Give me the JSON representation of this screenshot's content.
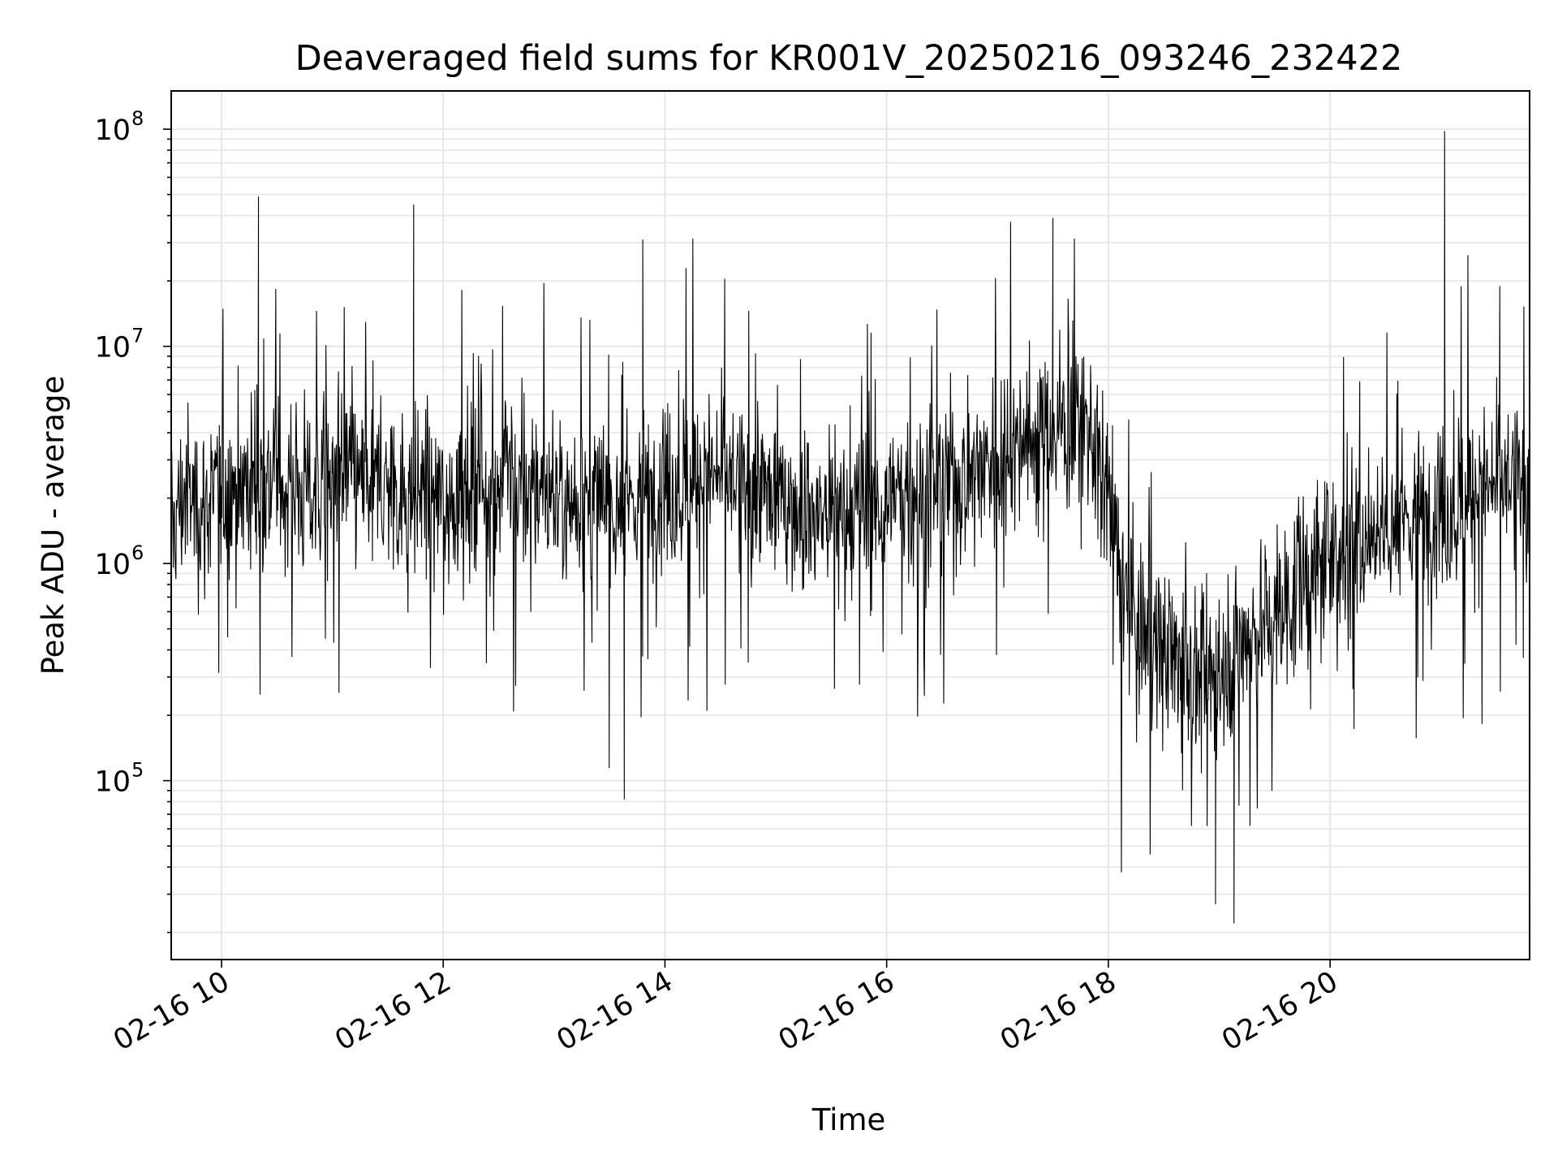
{
  "chart_data": {
    "type": "line",
    "title": "Deaveraged field sums for KR001V_20250216_093246_232422",
    "xlabel": "Time",
    "ylabel": "Peak ADU - average",
    "x_type": "datetime",
    "xlim": [
      "2025-02-16T09:32:46",
      "2025-02-16T21:48:00"
    ],
    "x_ticks": [
      {
        "label": "02-16 10",
        "value": "2025-02-16T10:00:00"
      },
      {
        "label": "02-16 12",
        "value": "2025-02-16T12:00:00"
      },
      {
        "label": "02-16 14",
        "value": "2025-02-16T14:00:00"
      },
      {
        "label": "02-16 16",
        "value": "2025-02-16T16:00:00"
      },
      {
        "label": "02-16 18",
        "value": "2025-02-16T18:00:00"
      },
      {
        "label": "02-16 20",
        "value": "2025-02-16T20:00:00"
      }
    ],
    "y_scale": "log",
    "ylim": [
      15000,
      150000000
    ],
    "y_ticks": [
      {
        "base": "10",
        "exp": "5",
        "value": 100000
      },
      {
        "base": "10",
        "exp": "6",
        "value": 1000000
      },
      {
        "base": "10",
        "exp": "7",
        "value": 10000000
      },
      {
        "base": "10",
        "exp": "8",
        "value": 100000000
      }
    ],
    "grid": true,
    "line_color": "#000000",
    "grid_color": "#e6e6e6",
    "series": [
      {
        "points": [
          [
            "2025-02-16T09:32:46",
            1400000
          ],
          [
            "2025-02-16T09:40:00",
            2100000
          ],
          [
            "2025-02-16T09:50:00",
            1800000
          ],
          [
            "2025-02-16T10:00:00",
            2200000
          ],
          [
            "2025-02-16T10:20:00",
            49000000
          ],
          [
            "2025-02-16T10:30:00",
            2500000
          ],
          [
            "2025-02-16T10:50:00",
            2100000
          ],
          [
            "2025-02-16T11:00:00",
            2600000
          ],
          [
            "2025-02-16T11:20:00",
            2300000
          ],
          [
            "2025-02-16T11:44:00",
            45000000
          ],
          [
            "2025-02-16T12:00:00",
            2000000
          ],
          [
            "2025-02-16T12:30:00",
            2400000
          ],
          [
            "2025-02-16T13:00:00",
            2100000
          ],
          [
            "2025-02-16T13:30:00",
            1800000
          ],
          [
            "2025-02-16T13:38:00",
            82000
          ],
          [
            "2025-02-16T13:48:00",
            31000000
          ],
          [
            "2025-02-16T14:00:00",
            2300000
          ],
          [
            "2025-02-16T14:30:00",
            2500000
          ],
          [
            "2025-02-16T15:00:00",
            2000000
          ],
          [
            "2025-02-16T15:20:00",
            1700000
          ],
          [
            "2025-02-16T15:40:00",
            1600000
          ],
          [
            "2025-02-16T16:00:00",
            2000000
          ],
          [
            "2025-02-16T16:30:00",
            2200000
          ],
          [
            "2025-02-16T17:00:00",
            3200000
          ],
          [
            "2025-02-16T17:20:00",
            4000000
          ],
          [
            "2025-02-16T17:30:00",
            39000000
          ],
          [
            "2025-02-16T17:50:00",
            4500000
          ],
          [
            "2025-02-16T18:00:00",
            2000000
          ],
          [
            "2025-02-16T18:10:00",
            600000
          ],
          [
            "2025-02-16T18:30:00",
            400000
          ],
          [
            "2025-02-16T18:50:00",
            280000
          ],
          [
            "2025-02-16T18:58:00",
            27000
          ],
          [
            "2025-02-16T19:08:00",
            22000
          ],
          [
            "2025-02-16T19:20:00",
            500000
          ],
          [
            "2025-02-16T19:40:00",
            700000
          ],
          [
            "2025-02-16T20:00:00",
            1100000
          ],
          [
            "2025-02-16T20:30:00",
            1500000
          ],
          [
            "2025-02-16T21:00:00",
            1800000
          ],
          [
            "2025-02-16T21:02:00",
            98000000
          ],
          [
            "2025-02-16T21:20:00",
            2100000
          ],
          [
            "2025-02-16T21:40:00",
            2400000
          ],
          [
            "2025-02-16T21:48:00",
            2300000
          ]
        ]
      }
    ]
  }
}
